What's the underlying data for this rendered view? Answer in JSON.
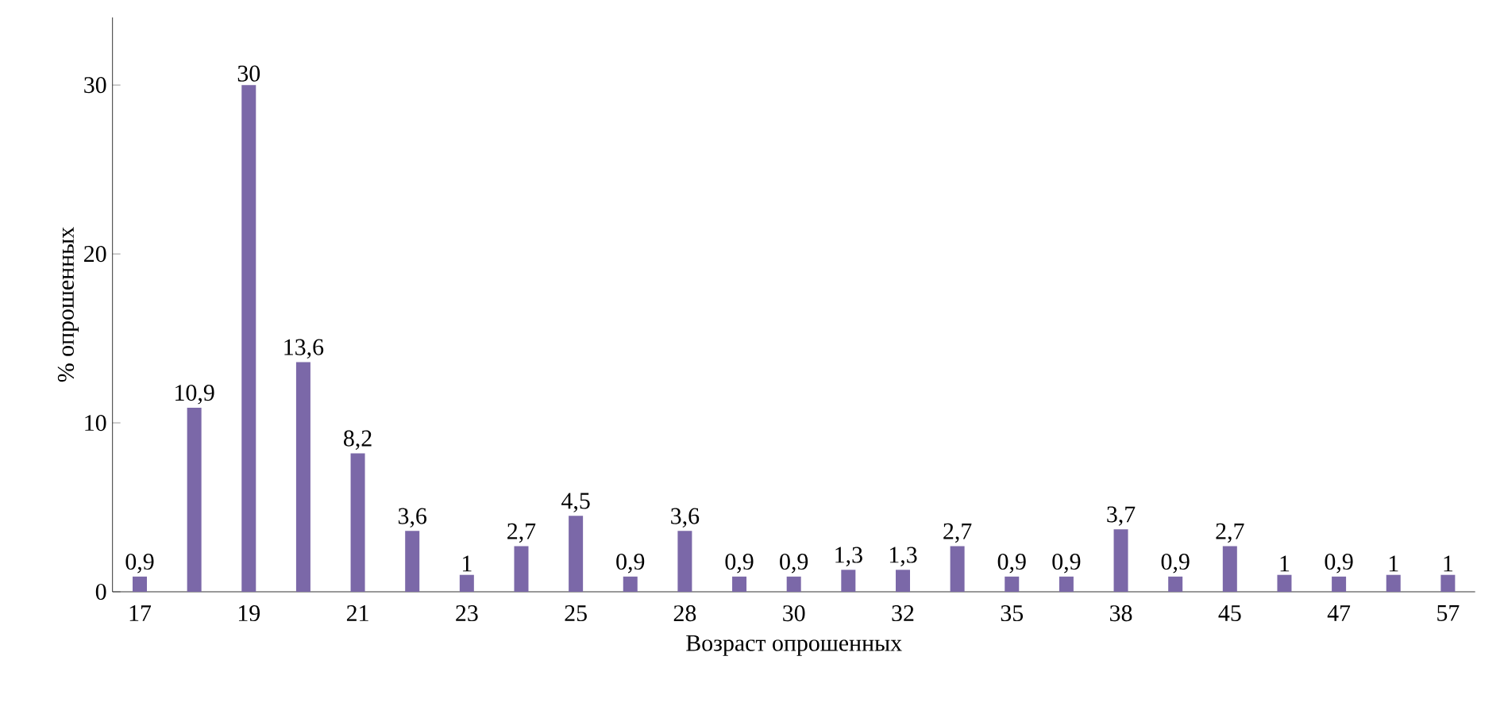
{
  "chart_data": {
    "type": "bar",
    "xlabel": "Возраст опрошенных",
    "ylabel": "% опрошенных",
    "categories": [
      "17",
      null,
      "19",
      null,
      "21",
      null,
      "23",
      null,
      "25",
      null,
      "28",
      null,
      "30",
      null,
      "32",
      null,
      "35",
      null,
      "38",
      null,
      "45",
      null,
      "47",
      null,
      "57"
    ],
    "values": [
      0.9,
      10.9,
      30,
      13.6,
      8.2,
      3.6,
      1,
      2.7,
      4.5,
      0.9,
      3.6,
      0.9,
      0.9,
      1.3,
      1.3,
      2.7,
      0.9,
      0.9,
      3.7,
      0.9,
      2.7,
      1,
      0.9,
      1,
      1
    ],
    "value_labels": [
      "0,9",
      "10,9",
      "30",
      "13,6",
      "8,2",
      "3,6",
      "1",
      "2,7",
      "4,5",
      "0,9",
      "3,6",
      "0,9",
      "0,9",
      "1,3",
      "1,3",
      "2,7",
      "0,9",
      "0,9",
      "3,7",
      "0,9",
      "2,7",
      "1",
      "0,9",
      "1",
      "1"
    ],
    "color": "#7b68a8",
    "ylim": [
      0,
      34
    ],
    "yticks": [
      0,
      10,
      20,
      30
    ],
    "grid": false
  }
}
